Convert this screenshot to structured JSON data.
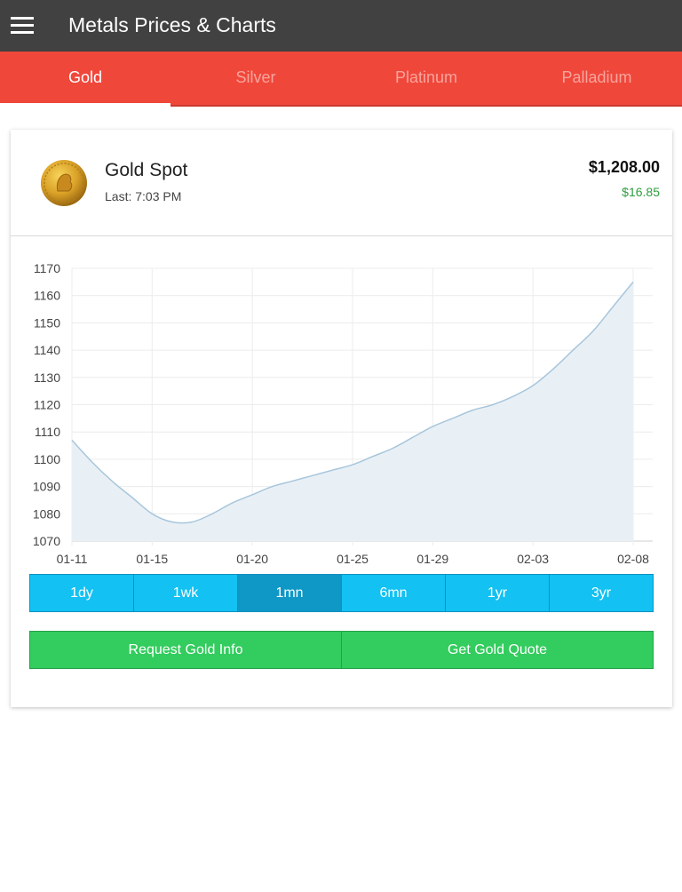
{
  "appbar": {
    "title": "Metals Prices & Charts",
    "menu_icon": "hamburger-menu-icon"
  },
  "tabs": [
    {
      "label": "Gold",
      "active": true
    },
    {
      "label": "Silver",
      "active": false
    },
    {
      "label": "Platinum",
      "active": false
    },
    {
      "label": "Palladium",
      "active": false
    }
  ],
  "spot": {
    "name": "Gold Spot",
    "last": "Last: 7:03 PM",
    "price": "$1,208.00",
    "change": "$16.85",
    "coin_icon": "gold-coin-icon"
  },
  "chart_data": {
    "type": "area",
    "x": [
      "01-11",
      "01-12",
      "01-13",
      "01-14",
      "01-15",
      "01-16",
      "01-17",
      "01-18",
      "01-19",
      "01-20",
      "01-21",
      "01-22",
      "01-23",
      "01-24",
      "01-25",
      "01-26",
      "01-27",
      "01-28",
      "01-29",
      "01-30",
      "01-31",
      "02-01",
      "02-02",
      "02-03",
      "02-04",
      "02-05",
      "02-06",
      "02-07",
      "02-08"
    ],
    "series": [
      {
        "values": [
          1107,
          1099,
          1092,
          1086,
          1080,
          1077,
          1077,
          1080,
          1084,
          1087,
          1090,
          1092,
          1094,
          1096,
          1098,
          1101,
          1104,
          1108,
          1112,
          1115,
          1118,
          1120,
          1123,
          1127,
          1133,
          1140,
          1147,
          1156,
          1165
        ]
      }
    ],
    "x_ticks": [
      "01-11",
      "01-15",
      "01-20",
      "01-25",
      "01-29",
      "02-03",
      "02-08"
    ],
    "y_ticks": [
      1070,
      1080,
      1090,
      1100,
      1110,
      1120,
      1130,
      1140,
      1150,
      1160,
      1170
    ],
    "ylim": [
      1070,
      1170
    ],
    "grid": true,
    "line_color": "#a7c6dc",
    "fill_color": "#e9f0f5"
  },
  "ranges": [
    {
      "label": "1dy",
      "active": false
    },
    {
      "label": "1wk",
      "active": false
    },
    {
      "label": "1mn",
      "active": true
    },
    {
      "label": "6mn",
      "active": false
    },
    {
      "label": "1yr",
      "active": false
    },
    {
      "label": "3yr",
      "active": false
    }
  ],
  "actions": {
    "request_info": "Request Gold Info",
    "get_quote": "Get Gold Quote"
  }
}
